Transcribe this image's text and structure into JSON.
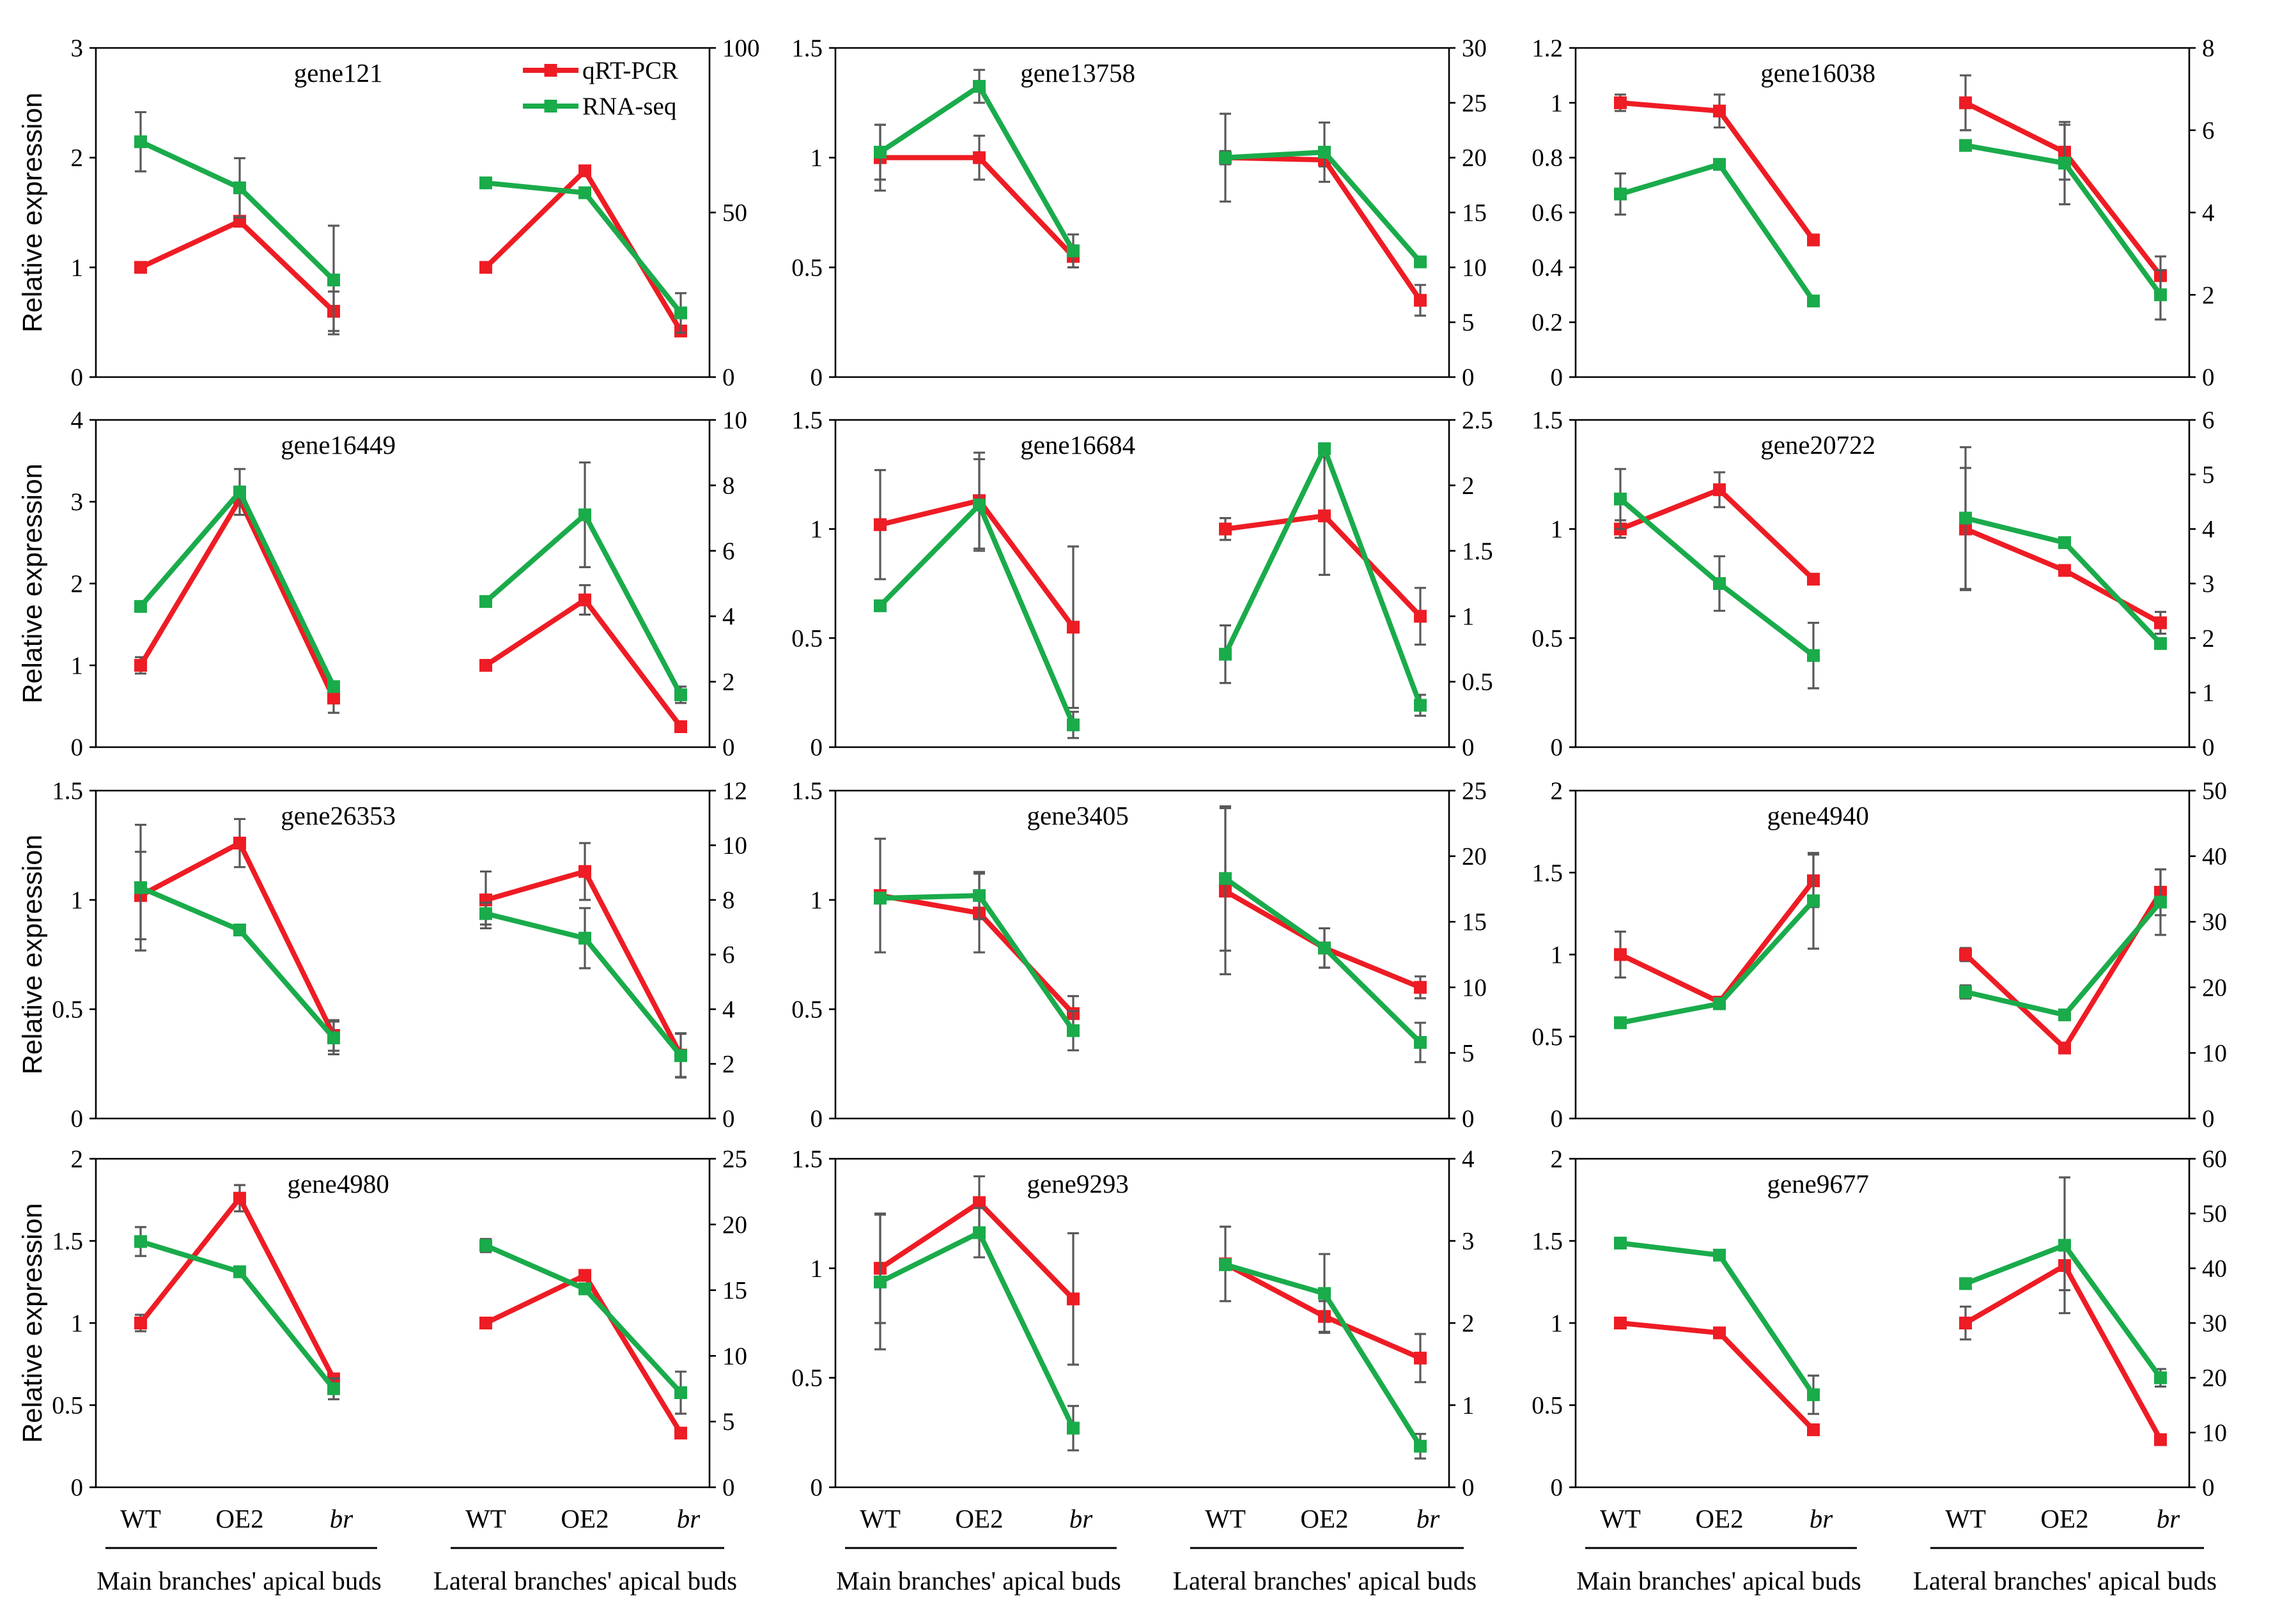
{
  "colors": {
    "qrt": "#ee1c24",
    "rna": "#1aab4b",
    "axis": "#000000",
    "error": "#595959"
  },
  "legend": {
    "qrt": "qRT-PCR",
    "rna": "RNA-seq"
  },
  "ylabel": "Relative expression",
  "categories": [
    "WT",
    "OE2",
    "br"
  ],
  "groups": [
    "Main branches' apical buds",
    "Lateral branches' apical buds"
  ],
  "chart_data": [
    {
      "type": "line",
      "title": "gene121",
      "left_ticks": [
        "0",
        "1",
        "2",
        "3"
      ],
      "left_lim": [
        0,
        3
      ],
      "right_ticks": [
        "0",
        "50",
        "100"
      ],
      "right_lim": [
        0,
        100
      ],
      "series": [
        {
          "name": "qRT-PCR",
          "axis": "left",
          "values": [
            [
              1.0,
              1.42,
              0.6
            ],
            [
              1.0,
              1.88,
              0.42
            ]
          ],
          "errors": [
            [
              0.02,
              0.03,
              0.18
            ],
            [
              0.02,
              0.02,
              0.04
            ]
          ]
        },
        {
          "name": "RNA-seq",
          "axis": "right",
          "values": [
            [
              71.5,
              57.5,
              29.5
            ],
            [
              59,
              56,
              19.5
            ]
          ],
          "errors": [
            [
              9,
              9,
              16.5
            ],
            [
              1.5,
              1.5,
              6
            ]
          ]
        }
      ]
    },
    {
      "type": "line",
      "title": "gene13758",
      "left_ticks": [
        "0",
        "0.5",
        "1",
        "1.5"
      ],
      "left_lim": [
        0,
        1.5
      ],
      "right_ticks": [
        "0",
        "5",
        "10",
        "15",
        "20",
        "25",
        "30"
      ],
      "right_lim": [
        0,
        30
      ],
      "series": [
        {
          "name": "qRT-PCR",
          "axis": "left",
          "values": [
            [
              1.0,
              1.0,
              0.55
            ],
            [
              1.0,
              0.99,
              0.35
            ]
          ],
          "errors": [
            [
              0.15,
              0.1,
              0.05
            ],
            [
              0.03,
              0.03,
              0.07
            ]
          ]
        },
        {
          "name": "RNA-seq",
          "axis": "right",
          "values": [
            [
              20.5,
              26.5,
              11.5
            ],
            [
              20,
              20.5,
              10.5
            ]
          ],
          "errors": [
            [
              2.5,
              1.5,
              1.5
            ],
            [
              4,
              2.7,
              0.3
            ]
          ]
        }
      ]
    },
    {
      "type": "line",
      "title": "gene16038",
      "left_ticks": [
        "0",
        "0.2",
        "0.4",
        "0.6",
        "0.8",
        "1",
        "1.2"
      ],
      "left_lim": [
        0,
        1.2
      ],
      "right_ticks": [
        "0",
        "2",
        "4",
        "6",
        "8"
      ],
      "right_lim": [
        0,
        8
      ],
      "series": [
        {
          "name": "qRT-PCR",
          "axis": "left",
          "values": [
            [
              1.0,
              0.97,
              0.5
            ],
            [
              1.0,
              0.82,
              0.37
            ]
          ],
          "errors": [
            [
              0.03,
              0.06,
              0.01
            ],
            [
              0.1,
              0.1,
              0.07
            ]
          ]
        },
        {
          "name": "RNA-seq",
          "axis": "right",
          "values": [
            [
              4.45,
              5.17,
              1.85
            ],
            [
              5.63,
              5.2,
              2.0
            ]
          ],
          "errors": [
            [
              0.5,
              0.05,
              0.05
            ],
            [
              0.05,
              1.0,
              0.6
            ]
          ]
        }
      ]
    },
    {
      "type": "line",
      "title": "gene16449",
      "left_ticks": [
        "0",
        "1",
        "2",
        "3",
        "4"
      ],
      "left_lim": [
        0,
        4
      ],
      "right_ticks": [
        "0",
        "2",
        "4",
        "6",
        "8",
        "10"
      ],
      "right_lim": [
        0,
        10
      ],
      "series": [
        {
          "name": "qRT-PCR",
          "axis": "left",
          "values": [
            [
              1.0,
              3.03,
              0.6
            ],
            [
              1.0,
              1.8,
              0.25
            ]
          ],
          "errors": [
            [
              0.1,
              0.05,
              0.18
            ],
            [
              0.05,
              0.18,
              0.02
            ]
          ]
        },
        {
          "name": "RNA-seq",
          "axis": "right",
          "values": [
            [
              4.3,
              7.8,
              1.85
            ],
            [
              4.45,
              7.1,
              1.6
            ]
          ],
          "errors": [
            [
              0.1,
              0.7,
              0.1
            ],
            [
              0.1,
              1.6,
              0.25
            ]
          ]
        }
      ]
    },
    {
      "type": "line",
      "title": "gene16684",
      "left_ticks": [
        "0",
        "0.5",
        "1",
        "1.5"
      ],
      "left_lim": [
        0,
        1.5
      ],
      "right_ticks": [
        "0",
        "0.5",
        "1",
        "1.5",
        "2",
        "2.5"
      ],
      "right_lim": [
        0,
        2.5
      ],
      "series": [
        {
          "name": "qRT-PCR",
          "axis": "left",
          "values": [
            [
              1.02,
              1.13,
              0.55
            ],
            [
              1.0,
              1.06,
              0.6
            ]
          ],
          "errors": [
            [
              0.25,
              0.22,
              0.37
            ],
            [
              0.05,
              0.27,
              0.13
            ]
          ]
        },
        {
          "name": "RNA-seq",
          "axis": "right",
          "values": [
            [
              1.08,
              1.85,
              0.17
            ],
            [
              0.71,
              2.28,
              0.32
            ]
          ],
          "errors": [
            [
              0.02,
              0.35,
              0.1
            ],
            [
              0.22,
              0.02,
              0.08
            ]
          ]
        }
      ]
    },
    {
      "type": "line",
      "title": "gene20722",
      "left_ticks": [
        "0",
        "0.5",
        "1",
        "1.5"
      ],
      "left_lim": [
        0,
        1.5
      ],
      "right_ticks": [
        "0",
        "1",
        "2",
        "3",
        "4",
        "5",
        "6"
      ],
      "right_lim": [
        0,
        6
      ],
      "series": [
        {
          "name": "qRT-PCR",
          "axis": "left",
          "values": [
            [
              1.0,
              1.18,
              0.77
            ],
            [
              1.0,
              0.81,
              0.57
            ]
          ],
          "errors": [
            [
              0.04,
              0.08,
              0.02
            ],
            [
              0.28,
              0.02,
              0.05
            ]
          ]
        },
        {
          "name": "RNA-seq",
          "axis": "right",
          "values": [
            [
              4.55,
              3.0,
              1.68
            ],
            [
              4.2,
              3.75,
              1.9
            ]
          ],
          "errors": [
            [
              0.55,
              0.5,
              0.6
            ],
            [
              1.3,
              0.05,
              0.05
            ]
          ]
        }
      ]
    },
    {
      "type": "line",
      "title": "gene26353",
      "left_ticks": [
        "0",
        "0.5",
        "1",
        "1.5"
      ],
      "left_lim": [
        0,
        1.5
      ],
      "right_ticks": [
        "0",
        "2",
        "4",
        "6",
        "8",
        "10",
        "12"
      ],
      "right_lim": [
        0,
        12
      ],
      "series": [
        {
          "name": "qRT-PCR",
          "axis": "left",
          "values": [
            [
              1.02,
              1.26,
              0.38
            ],
            [
              1.0,
              1.13,
              0.29
            ]
          ],
          "errors": [
            [
              0.2,
              0.11,
              0.07
            ],
            [
              0.13,
              0.13,
              0.1
            ]
          ]
        },
        {
          "name": "RNA-seq",
          "axis": "right",
          "values": [
            [
              8.45,
              6.9,
              2.95
            ],
            [
              7.5,
              6.6,
              2.3
            ]
          ],
          "errors": [
            [
              2.3,
              0.1,
              0.6
            ],
            [
              0.4,
              1.1,
              0.8
            ]
          ]
        }
      ]
    },
    {
      "type": "line",
      "title": "gene3405",
      "left_ticks": [
        "0",
        "0.5",
        "1",
        "1.5"
      ],
      "left_lim": [
        0,
        1.5
      ],
      "right_ticks": [
        "0",
        "5",
        "10",
        "15",
        "20",
        "25"
      ],
      "right_lim": [
        0,
        25
      ],
      "series": [
        {
          "name": "qRT-PCR",
          "axis": "left",
          "values": [
            [
              1.02,
              0.94,
              0.48
            ],
            [
              1.04,
              0.78,
              0.6
            ]
          ],
          "errors": [
            [
              0.26,
              0.18,
              0.08
            ],
            [
              0.38,
              0.09,
              0.05
            ]
          ]
        },
        {
          "name": "RNA-seq",
          "axis": "right",
          "values": [
            [
              16.8,
              17.0,
              6.7
            ],
            [
              18.3,
              13.0,
              5.8
            ]
          ],
          "errors": [
            [
              0.2,
              1.8,
              1.5
            ],
            [
              5.5,
              1.5,
              1.5
            ]
          ]
        }
      ]
    },
    {
      "type": "line",
      "title": "gene4940",
      "left_ticks": [
        "0",
        "0.5",
        "1",
        "1.5",
        "2"
      ],
      "left_lim": [
        0,
        2
      ],
      "right_ticks": [
        "0",
        "10",
        "20",
        "30",
        "40",
        "50"
      ],
      "right_lim": [
        0,
        50
      ],
      "series": [
        {
          "name": "qRT-PCR",
          "axis": "left",
          "values": [
            [
              1.0,
              0.71,
              1.45
            ],
            [
              1.0,
              0.43,
              1.38
            ]
          ],
          "errors": [
            [
              0.14,
              0.02,
              0.16
            ],
            [
              0.04,
              0.02,
              0.14
            ]
          ]
        },
        {
          "name": "RNA-seq",
          "axis": "right",
          "values": [
            [
              14.6,
              17.5,
              33.2
            ],
            [
              19.3,
              15.8,
              33.0
            ]
          ],
          "errors": [
            [
              0.6,
              0.8,
              7.3
            ],
            [
              1.0,
              0.2,
              5.0
            ]
          ]
        }
      ]
    },
    {
      "type": "line",
      "title": "gene4980",
      "left_ticks": [
        "0",
        "0.5",
        "1",
        "1.5",
        "2"
      ],
      "left_lim": [
        0,
        2
      ],
      "right_ticks": [
        "0",
        "5",
        "10",
        "15",
        "20",
        "25"
      ],
      "right_lim": [
        0,
        25
      ],
      "series": [
        {
          "name": "qRT-PCR",
          "axis": "left",
          "values": [
            [
              1.0,
              1.76,
              0.66
            ],
            [
              1.0,
              1.29,
              0.33
            ]
          ],
          "errors": [
            [
              0.05,
              0.08,
              0.02
            ],
            [
              0.02,
              0.02,
              0.02
            ]
          ]
        },
        {
          "name": "RNA-seq",
          "axis": "right",
          "values": [
            [
              18.7,
              16.4,
              7.5
            ],
            [
              18.4,
              15.1,
              7.2
            ]
          ],
          "errors": [
            [
              1.1,
              0.2,
              0.8
            ],
            [
              0.5,
              0.2,
              1.6
            ]
          ]
        }
      ]
    },
    {
      "type": "line",
      "title": "gene9293",
      "left_ticks": [
        "0",
        "0.5",
        "1",
        "1.5"
      ],
      "left_lim": [
        0,
        1.5
      ],
      "right_ticks": [
        "0",
        "1",
        "2",
        "3",
        "4"
      ],
      "right_lim": [
        0,
        4
      ],
      "series": [
        {
          "name": "qRT-PCR",
          "axis": "left",
          "values": [
            [
              1.0,
              1.3,
              0.86
            ],
            [
              1.02,
              0.78,
              0.59
            ]
          ],
          "errors": [
            [
              0.25,
              0.12,
              0.3
            ],
            [
              0.17,
              0.07,
              0.11
            ]
          ]
        },
        {
          "name": "RNA-seq",
          "axis": "right",
          "values": [
            [
              2.5,
              3.1,
              0.72
            ],
            [
              2.71,
              2.36,
              0.5
            ]
          ],
          "errors": [
            [
              0.82,
              0.3,
              0.27
            ],
            [
              0.02,
              0.48,
              0.15
            ]
          ]
        }
      ]
    },
    {
      "type": "line",
      "title": "gene9677",
      "left_ticks": [
        "0",
        "0.5",
        "1",
        "1.5",
        "2"
      ],
      "left_lim": [
        0,
        2
      ],
      "right_ticks": [
        "0",
        "10",
        "20",
        "30",
        "40",
        "50",
        "60"
      ],
      "right_lim": [
        0,
        60
      ],
      "series": [
        {
          "name": "qRT-PCR",
          "axis": "left",
          "values": [
            [
              1.0,
              0.94,
              0.35
            ],
            [
              1.0,
              1.35,
              0.29
            ]
          ],
          "errors": [
            [
              0.01,
              0.02,
              0.03
            ],
            [
              0.1,
              0.15,
              0.01
            ]
          ]
        },
        {
          "name": "RNA-seq",
          "axis": "right",
          "values": [
            [
              44.6,
              42.4,
              16.9
            ],
            [
              37.2,
              44.2,
              20.0
            ]
          ],
          "errors": [
            [
              0.3,
              0.3,
              3.5
            ],
            [
              0.3,
              12.4,
              1.6
            ]
          ]
        }
      ]
    }
  ]
}
